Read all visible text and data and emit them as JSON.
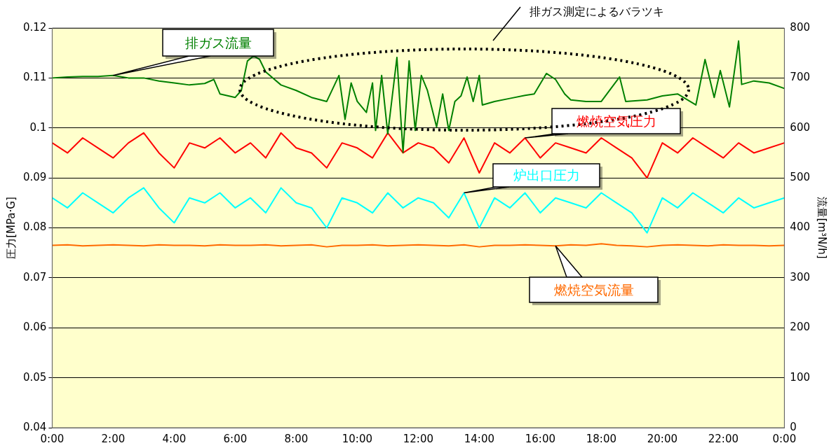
{
  "chart_data": {
    "type": "line",
    "ylabel": "圧力[MPa·G]",
    "y2label": "流量[m³N/h]",
    "annotations": [
      "排ガス測定によるバラツキ"
    ],
    "xlim": [
      0,
      24
    ],
    "xticks": [
      {
        "value": 0,
        "label": "0:00"
      },
      {
        "value": 2,
        "label": "2:00"
      },
      {
        "value": 4,
        "label": "4:00"
      },
      {
        "value": 6,
        "label": "6:00"
      },
      {
        "value": 8,
        "label": "8:00"
      },
      {
        "value": 10,
        "label": "10:00"
      },
      {
        "value": 12,
        "label": "12:00"
      },
      {
        "value": 14,
        "label": "14:00"
      },
      {
        "value": 16,
        "label": "16:00"
      },
      {
        "value": 18,
        "label": "18:00"
      },
      {
        "value": 20,
        "label": "20:00"
      },
      {
        "value": 22,
        "label": "22:00"
      },
      {
        "value": 24,
        "label": "0:00"
      }
    ],
    "ylim": [
      0.04,
      0.12
    ],
    "yticks": [
      0.04,
      0.05,
      0.06,
      0.07,
      0.08,
      0.09,
      0.1,
      0.11,
      0.12
    ],
    "y2lim": [
      0,
      800
    ],
    "y2ticks": [
      0,
      100,
      200,
      300,
      400,
      500,
      600,
      700,
      800
    ],
    "grid": "y",
    "legend": false,
    "marker": "none",
    "line_style": "solid",
    "x": [
      0,
      0.5,
      1,
      1.5,
      2,
      2.5,
      3,
      3.5,
      4,
      4.5,
      5,
      5.5,
      6,
      6.5,
      7,
      7.5,
      8,
      8.5,
      9,
      9.5,
      10,
      10.5,
      11,
      11.5,
      12,
      12.5,
      13,
      13.5,
      14,
      14.5,
      15,
      15.5,
      16,
      16.5,
      17,
      17.5,
      18,
      18.5,
      19,
      19.5,
      20,
      20.5,
      21,
      21.5,
      22,
      22.5,
      23,
      23.5,
      24
    ],
    "series": [
      {
        "name": "排ガス流量",
        "color": "#008000",
        "axis": "y2",
        "x": [
          0,
          0.5,
          1,
          1.5,
          2,
          2.5,
          3,
          3.5,
          4,
          4.5,
          5,
          5.3,
          5.5,
          6,
          6.2,
          6.4,
          6.6,
          6.8,
          7,
          7.5,
          8,
          8.5,
          9,
          9.4,
          9.6,
          9.8,
          10,
          10.3,
          10.5,
          10.6,
          10.8,
          11,
          11.3,
          11.5,
          11.7,
          11.9,
          12.1,
          12.3,
          12.6,
          12.8,
          13,
          13.2,
          13.4,
          13.6,
          13.8,
          14,
          14.1,
          14.5,
          15,
          15.5,
          15.8,
          16.2,
          16.5,
          16.8,
          17,
          17.5,
          18,
          18.6,
          18.8,
          19.5,
          20,
          20.5,
          21.1,
          21.4,
          21.7,
          21.9,
          22.2,
          22.5,
          22.6,
          23,
          23.5,
          24
        ],
        "values": [
          700,
          702,
          703,
          703,
          705,
          700,
          700,
          694,
          690,
          686,
          689,
          697,
          668,
          661,
          675,
          734,
          744,
          737,
          712,
          686,
          675,
          661,
          653,
          705,
          617,
          690,
          653,
          631,
          690,
          595,
          705,
          588,
          741,
          551,
          734,
          595,
          705,
          675,
          602,
          668,
          595,
          653,
          664,
          702,
          653,
          705,
          646,
          653,
          659,
          665,
          668,
          709,
          697,
          668,
          656,
          653,
          653,
          702,
          653,
          656,
          664,
          668,
          646,
          737,
          661,
          715,
          642,
          774,
          687,
          694,
          690,
          679
        ]
      },
      {
        "name": "燃焼空気圧力",
        "color": "#ff0000",
        "axis": "y",
        "values": [
          0.097,
          0.095,
          0.098,
          0.096,
          0.094,
          0.097,
          0.099,
          0.095,
          0.092,
          0.097,
          0.096,
          0.098,
          0.095,
          0.097,
          0.094,
          0.099,
          0.096,
          0.095,
          0.092,
          0.097,
          0.096,
          0.094,
          0.099,
          0.095,
          0.097,
          0.096,
          0.093,
          0.098,
          0.091,
          0.097,
          0.095,
          0.098,
          0.094,
          0.097,
          0.096,
          0.095,
          0.098,
          0.096,
          0.094,
          0.09,
          0.097,
          0.095,
          0.098,
          0.096,
          0.094,
          0.097,
          0.095,
          0.096,
          0.097
        ]
      },
      {
        "name": "炉出口圧力",
        "color": "#00ffff",
        "axis": "y",
        "values": [
          0.086,
          0.084,
          0.087,
          0.085,
          0.083,
          0.086,
          0.088,
          0.084,
          0.081,
          0.086,
          0.085,
          0.087,
          0.084,
          0.086,
          0.083,
          0.088,
          0.085,
          0.084,
          0.08,
          0.086,
          0.085,
          0.083,
          0.087,
          0.084,
          0.086,
          0.085,
          0.082,
          0.087,
          0.08,
          0.086,
          0.084,
          0.087,
          0.083,
          0.086,
          0.085,
          0.084,
          0.087,
          0.085,
          0.083,
          0.079,
          0.086,
          0.084,
          0.087,
          0.085,
          0.083,
          0.086,
          0.084,
          0.085,
          0.086
        ]
      },
      {
        "name": "燃焼空気流量",
        "color": "#ff6a00",
        "axis": "y2",
        "values": [
          365,
          366,
          364,
          365,
          366,
          365,
          364,
          366,
          365,
          365,
          364,
          366,
          365,
          365,
          366,
          364,
          365,
          366,
          362,
          365,
          365,
          366,
          364,
          365,
          366,
          365,
          364,
          366,
          362,
          365,
          365,
          366,
          365,
          364,
          366,
          365,
          368,
          365,
          364,
          362,
          365,
          366,
          365,
          364,
          366,
          365,
          365,
          364,
          365
        ]
      }
    ]
  }
}
